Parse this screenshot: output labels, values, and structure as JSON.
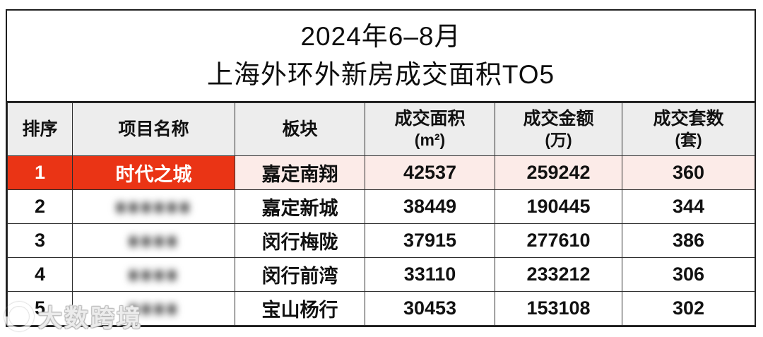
{
  "title": {
    "line1": "2024年6–8月",
    "line2": "上海外环外新房成交面积TO5"
  },
  "watermark": {
    "text": "大数跨境"
  },
  "colors": {
    "highlight_red": "#ea3415",
    "highlight_pink": "#fcebe8",
    "header_bg": "#ededed",
    "border_dark": "#1e1e1e"
  },
  "table": {
    "columns": [
      {
        "label": "排序",
        "unit": ""
      },
      {
        "label": "项目名称",
        "unit": ""
      },
      {
        "label": "板块",
        "unit": ""
      },
      {
        "label": "成交面积",
        "unit": "(m²)"
      },
      {
        "label": "成交金额",
        "unit": "(万)"
      },
      {
        "label": "成交套数",
        "unit": "(套)"
      }
    ],
    "rows": [
      {
        "rank": "1",
        "project": "时代之城",
        "project_redacted": false,
        "redacted_placeholder": "",
        "block": "嘉定南翔",
        "area": "42537",
        "amount": "259242",
        "units": "360",
        "highlight": true
      },
      {
        "rank": "2",
        "project": "",
        "project_redacted": true,
        "redacted_placeholder": "■■■■■■",
        "block": "嘉定新城",
        "area": "38449",
        "amount": "190445",
        "units": "344",
        "highlight": false
      },
      {
        "rank": "3",
        "project": "",
        "project_redacted": true,
        "redacted_placeholder": "■■■■",
        "block": "闵行梅陇",
        "area": "37915",
        "amount": "277610",
        "units": "386",
        "highlight": false
      },
      {
        "rank": "4",
        "project": "",
        "project_redacted": true,
        "redacted_placeholder": "■■■■",
        "block": "闵行前湾",
        "area": "33110",
        "amount": "233212",
        "units": "306",
        "highlight": false
      },
      {
        "rank": "5",
        "project": "",
        "project_redacted": true,
        "redacted_placeholder": "■■■■",
        "block": "宝山杨行",
        "area": "30453",
        "amount": "153108",
        "units": "302",
        "highlight": false
      }
    ]
  },
  "chart_data": {
    "type": "table",
    "title": "2024年6–8月 上海外环外新房成交面积TO5",
    "columns": [
      "排序",
      "项目名称",
      "板块",
      "成交面积(m²)",
      "成交金额(万)",
      "成交套数(套)"
    ],
    "rows": [
      [
        "1",
        "时代之城",
        "嘉定南翔",
        42537,
        259242,
        360
      ],
      [
        "2",
        "[blurred]",
        "嘉定新城",
        38449,
        190445,
        344
      ],
      [
        "3",
        "[blurred]",
        "闵行梅陇",
        37915,
        277610,
        386
      ],
      [
        "4",
        "[blurred]",
        "闵行前湾",
        33110,
        233212,
        306
      ],
      [
        "5",
        "[blurred]",
        "宝山杨行",
        30453,
        153108,
        302
      ]
    ]
  }
}
